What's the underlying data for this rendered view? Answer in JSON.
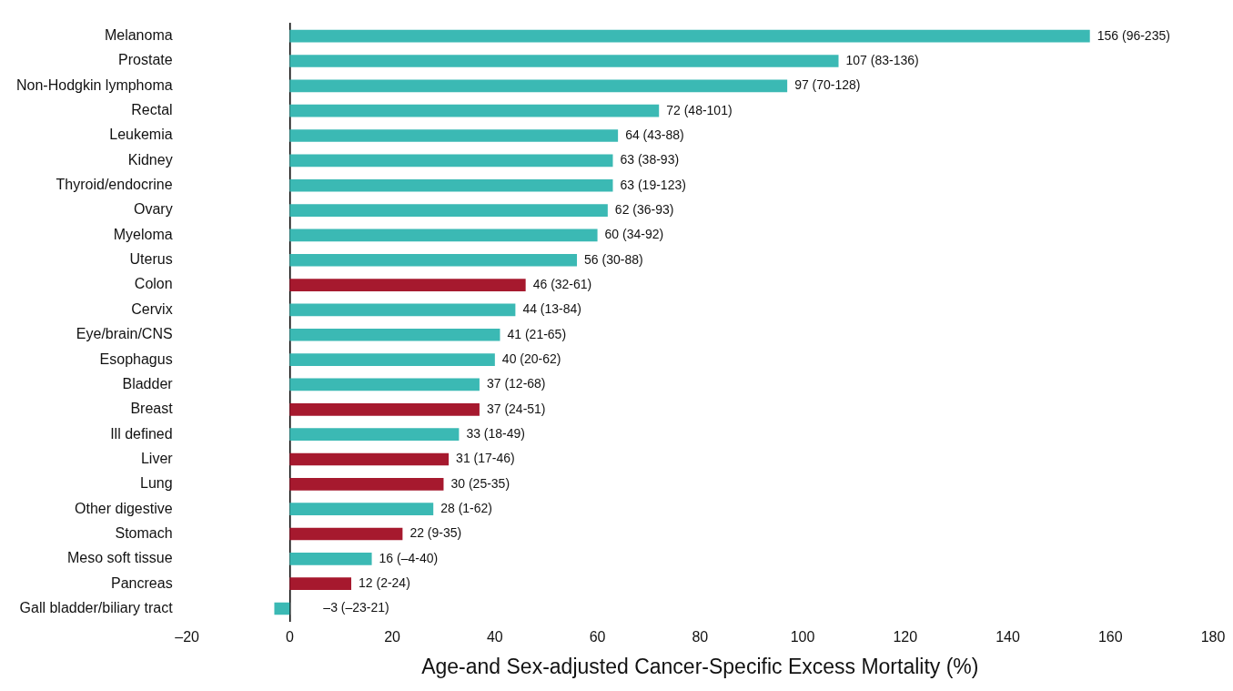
{
  "chart_data": {
    "type": "bar",
    "orientation": "horizontal",
    "xlabel": "Age-and Sex-adjusted Cancer-Specific Excess Mortality (%)",
    "categories": [
      "Melanoma",
      "Prostate",
      "Non-Hodgkin lymphoma",
      "Rectal",
      "Leukemia",
      "Kidney",
      "Thyroid/endocrine",
      "Ovary",
      "Myeloma",
      "Uterus",
      "Colon",
      "Cervix",
      "Eye/brain/CNS",
      "Esophagus",
      "Bladder",
      "Breast",
      "Ill defined",
      "Liver",
      "Lung",
      "Other digestive",
      "Stomach",
      "Meso soft tissue",
      "Pancreas",
      "Gall bladder/biliary tract"
    ],
    "values": [
      156,
      107,
      97,
      72,
      64,
      63,
      63,
      62,
      60,
      56,
      46,
      44,
      41,
      40,
      37,
      37,
      33,
      31,
      30,
      28,
      22,
      16,
      12,
      -3
    ],
    "colors": [
      "#3bb9b4",
      "#3bb9b4",
      "#3bb9b4",
      "#3bb9b4",
      "#3bb9b4",
      "#3bb9b4",
      "#3bb9b4",
      "#3bb9b4",
      "#3bb9b4",
      "#3bb9b4",
      "#a6192e",
      "#3bb9b4",
      "#3bb9b4",
      "#3bb9b4",
      "#3bb9b4",
      "#a6192e",
      "#3bb9b4",
      "#a6192e",
      "#a6192e",
      "#3bb9b4",
      "#a6192e",
      "#3bb9b4",
      "#a6192e",
      "#3bb9b4"
    ],
    "value_labels": [
      "156 (96-235)",
      "107 (83-136)",
      "97 (70-128)",
      "72 (48-101)",
      "64 (43-88)",
      "63 (38-93)",
      "63 (19-123)",
      "62 (36-93)",
      "60 (34-92)",
      "56 (30-88)",
      "46 (32-61)",
      "44 (13-84)",
      "41 (21-65)",
      "40 (20-62)",
      "37 (12-68)",
      "37 (24-51)",
      "33 (18-49)",
      "31 (17-46)",
      "30 (25-35)",
      "28 (1-62)",
      "22 (9-35)",
      "16 (–4-40)",
      "12 (2-24)",
      "–3 (–23-21)"
    ],
    "xlim": [
      -20,
      180
    ],
    "xticks": [
      {
        "value": -20,
        "label": "–20"
      },
      0,
      20,
      40,
      60,
      80,
      100,
      120,
      140,
      160,
      180
    ],
    "legend": false
  }
}
